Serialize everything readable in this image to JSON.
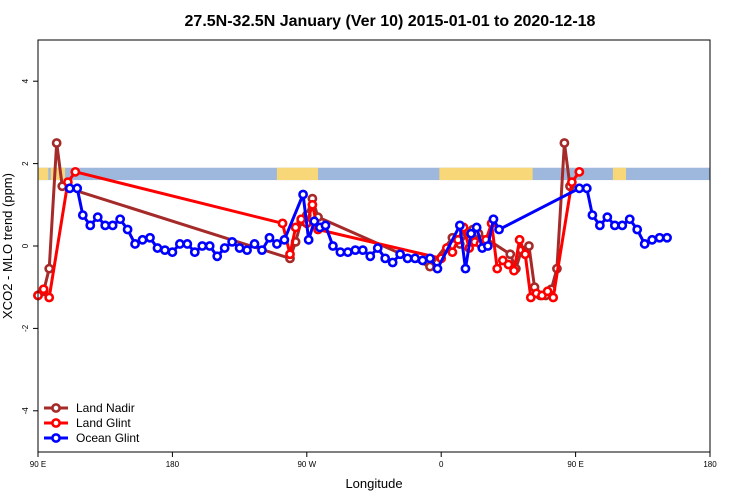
{
  "chart_data": {
    "type": "line",
    "title": "27.5N-32.5N January (Ver 10)   2015-01-01 to 2020-12-18",
    "xlabel": "Longitude",
    "ylabel": "XCO2 - MLO trend (ppm)",
    "xlim": [
      90,
      450
    ],
    "ylim": [
      -5,
      5
    ],
    "x_ticks": [
      {
        "value": 90,
        "label": "90 E"
      },
      {
        "value": 162,
        "label": "180"
      },
      {
        "value": 234,
        "label": "90 W"
      },
      {
        "value": 306,
        "label": "0"
      },
      {
        "value": 378,
        "label": "90 E"
      },
      {
        "value": 450,
        "label": "180"
      }
    ],
    "y_ticks": [
      {
        "value": -4,
        "label": "-4"
      },
      {
        "value": -2,
        "label": "-2"
      },
      {
        "value": 0,
        "label": "0"
      },
      {
        "value": 2,
        "label": "2"
      },
      {
        "value": 4,
        "label": "4"
      }
    ],
    "grid": false,
    "legend_position": "bottom-left",
    "land_mask_band": {
      "y_range": [
        1.6,
        1.9
      ],
      "ocean_color": "#9db8dc",
      "land_color": "#f8d778",
      "land_segments": [
        [
          90,
          95.5
        ],
        [
          96.8,
          104.5
        ],
        [
          218,
          240
        ],
        [
          305,
          355
        ],
        [
          398,
          405
        ]
      ]
    },
    "series": [
      {
        "name": "Land Nadir",
        "color": "#a52a2a",
        "points": [
          [
            90,
            -1.2
          ],
          [
            93,
            -1.1
          ],
          [
            96,
            -0.55
          ],
          [
            100,
            2.5
          ],
          [
            103,
            1.45
          ],
          [
            225,
            -0.3
          ],
          [
            228,
            0.1
          ],
          [
            231,
            0.6
          ],
          [
            234,
            0.75
          ],
          [
            237,
            1.15
          ],
          [
            240,
            0.7
          ],
          [
            300,
            -0.5
          ],
          [
            312,
            0.2
          ],
          [
            316,
            0.05
          ],
          [
            320,
            0.3
          ],
          [
            323,
            0.4
          ],
          [
            326,
            0.3
          ],
          [
            343,
            -0.2
          ],
          [
            346,
            -0.55
          ],
          [
            349,
            -0.1
          ],
          [
            353,
            0.0
          ],
          [
            356,
            -1.0
          ],
          [
            359,
            -1.2
          ],
          [
            362,
            -1.2
          ],
          [
            365,
            -1.05
          ],
          [
            368,
            -0.55
          ],
          [
            372,
            2.5
          ],
          [
            375,
            1.45
          ]
        ]
      },
      {
        "name": "Land Glint",
        "color": "#ff0000",
        "points": [
          [
            90,
            -1.2
          ],
          [
            93,
            -1.05
          ],
          [
            96,
            -1.25
          ],
          [
            106,
            1.55
          ],
          [
            110,
            1.8
          ],
          [
            221,
            0.55
          ],
          [
            225,
            -0.2
          ],
          [
            228,
            0.45
          ],
          [
            231,
            0.65
          ],
          [
            234,
            0.55
          ],
          [
            237,
            1.0
          ],
          [
            240,
            0.4
          ],
          [
            306,
            -0.3
          ],
          [
            309,
            -0.05
          ],
          [
            312,
            -0.15
          ],
          [
            315,
            0.15
          ],
          [
            318,
            0.45
          ],
          [
            321,
            -0.05
          ],
          [
            324,
            0.1
          ],
          [
            327,
            0.05
          ],
          [
            330,
            0.15
          ],
          [
            333,
            0.55
          ],
          [
            336,
            -0.55
          ],
          [
            339,
            -0.35
          ],
          [
            342,
            -0.45
          ],
          [
            345,
            -0.6
          ],
          [
            348,
            0.15
          ],
          [
            351,
            -0.2
          ],
          [
            354,
            -1.25
          ],
          [
            357,
            -1.15
          ],
          [
            360,
            -1.2
          ],
          [
            363,
            -1.1
          ],
          [
            366,
            -1.25
          ],
          [
            376,
            1.55
          ],
          [
            380,
            1.8
          ]
        ]
      },
      {
        "name": "Ocean Glint",
        "color": "#0000ff",
        "points": [
          [
            107,
            1.4
          ],
          [
            111,
            1.4
          ],
          [
            114,
            0.75
          ],
          [
            118,
            0.5
          ],
          [
            122,
            0.7
          ],
          [
            126,
            0.5
          ],
          [
            130,
            0.5
          ],
          [
            134,
            0.65
          ],
          [
            138,
            0.4
          ],
          [
            142,
            0.05
          ],
          [
            146,
            0.15
          ],
          [
            150,
            0.2
          ],
          [
            154,
            -0.05
          ],
          [
            158,
            -0.1
          ],
          [
            162,
            -0.15
          ],
          [
            166,
            0.05
          ],
          [
            170,
            0.05
          ],
          [
            174,
            -0.15
          ],
          [
            178,
            0.0
          ],
          [
            182,
            0.0
          ],
          [
            186,
            -0.25
          ],
          [
            190,
            -0.05
          ],
          [
            194,
            0.1
          ],
          [
            198,
            -0.05
          ],
          [
            202,
            -0.1
          ],
          [
            206,
            0.05
          ],
          [
            210,
            -0.1
          ],
          [
            214,
            0.2
          ],
          [
            218,
            0.05
          ],
          [
            222,
            0.15
          ],
          [
            232,
            1.25
          ],
          [
            235,
            0.15
          ],
          [
            238,
            0.6
          ],
          [
            241,
            0.45
          ],
          [
            244,
            0.5
          ],
          [
            248,
            0.0
          ],
          [
            252,
            -0.15
          ],
          [
            256,
            -0.15
          ],
          [
            260,
            -0.1
          ],
          [
            264,
            -0.1
          ],
          [
            268,
            -0.25
          ],
          [
            272,
            -0.05
          ],
          [
            276,
            -0.3
          ],
          [
            280,
            -0.4
          ],
          [
            284,
            -0.2
          ],
          [
            288,
            -0.3
          ],
          [
            292,
            -0.3
          ],
          [
            296,
            -0.35
          ],
          [
            300,
            -0.3
          ],
          [
            304,
            -0.55
          ],
          [
            316,
            0.5
          ],
          [
            319,
            -0.55
          ],
          [
            322,
            0.3
          ],
          [
            325,
            0.45
          ],
          [
            328,
            -0.05
          ],
          [
            331,
            0.0
          ],
          [
            334,
            0.65
          ],
          [
            337,
            0.4
          ],
          [
            380,
            1.4
          ],
          [
            384,
            1.4
          ],
          [
            387,
            0.75
          ],
          [
            391,
            0.5
          ],
          [
            395,
            0.7
          ],
          [
            399,
            0.5
          ],
          [
            403,
            0.5
          ],
          [
            407,
            0.65
          ],
          [
            411,
            0.4
          ],
          [
            415,
            0.05
          ],
          [
            419,
            0.15
          ],
          [
            423,
            0.2
          ],
          [
            427,
            0.2
          ]
        ]
      }
    ]
  }
}
